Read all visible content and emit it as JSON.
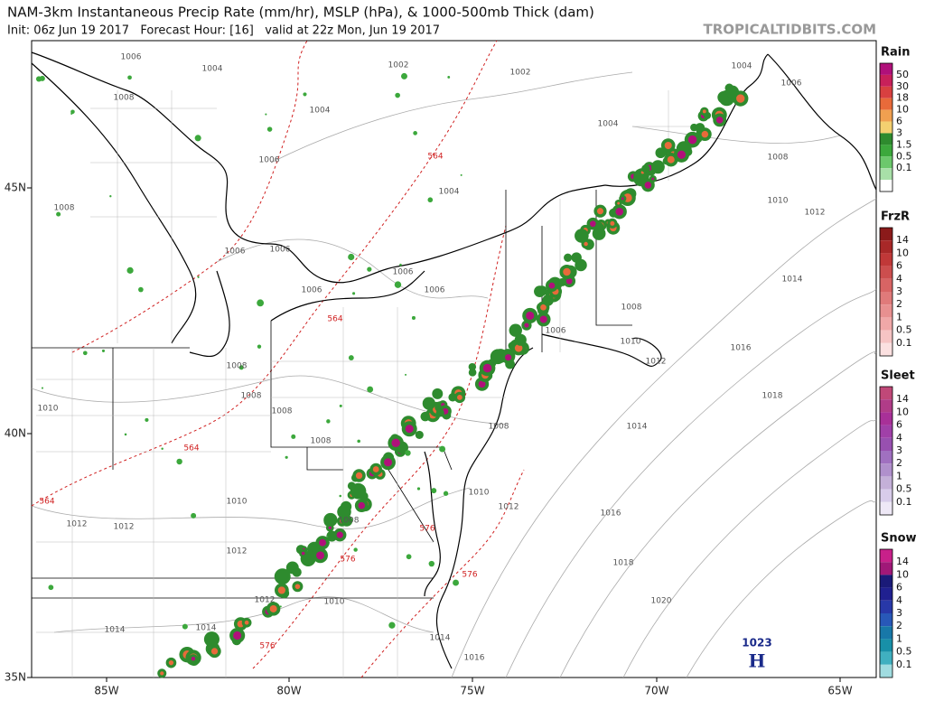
{
  "header": {
    "title": "NAM-3km Instantaneous Precip Rate (mm/hr), MSLP (hPa), & 1000-500mb Thick (dam)",
    "subtitle": "Init: 06z Jun 19 2017   Forecast Hour: [16]   valid at 22z Mon, Jun 19 2017",
    "watermark": "TROPICALTIDBITS.COM"
  },
  "axes": {
    "longitude": [
      "85W",
      "80W",
      "75W",
      "70W",
      "65W"
    ],
    "latitude": [
      "45N",
      "40N",
      "35N"
    ]
  },
  "legends": [
    {
      "title": "Rain",
      "levels": [
        "50",
        "30",
        "18",
        "10",
        "6",
        "3",
        "1.5",
        "0.5",
        "0.1"
      ],
      "colors": [
        "#b0107a",
        "#c8205a",
        "#d84040",
        "#e86a3a",
        "#f0a050",
        "#f4d070",
        "#2e8b2e",
        "#3ca83c",
        "#6cc86c",
        "#a8e0a8",
        "#ffffff"
      ]
    },
    {
      "title": "FrzR",
      "levels": [
        "14",
        "10",
        "6",
        "4",
        "3",
        "2",
        "1",
        "0.5",
        "0.1"
      ],
      "colors": [
        "#8b1a1a",
        "#a82828",
        "#c03838",
        "#cc4e4e",
        "#d86464",
        "#e07a7a",
        "#e89090",
        "#f0a8a8",
        "#f6c4c4",
        "#fbe0e0"
      ]
    },
    {
      "title": "Sleet",
      "levels": [
        "14",
        "10",
        "6",
        "4",
        "3",
        "2",
        "1",
        "0.5",
        "0.1"
      ],
      "colors": [
        "#c04878",
        "#b03c88",
        "#a83098",
        "#a040a8",
        "#9850b0",
        "#a070c0",
        "#b090cc",
        "#c4b0d8",
        "#d8ccea",
        "#eee8f6"
      ]
    },
    {
      "title": "Snow",
      "levels": [
        "14",
        "10",
        "6",
        "4",
        "3",
        "2",
        "1",
        "0.5",
        "0.1"
      ],
      "colors": [
        "#c8208a",
        "#a01878",
        "#1a1a78",
        "#202090",
        "#2838a8",
        "#2858b8",
        "#1878a8",
        "#1890a8",
        "#40b0c0",
        "#a0dce0"
      ]
    }
  ],
  "isobar_labels": [
    "1006",
    "1004",
    "1002",
    "1002",
    "1004",
    "1006",
    "1008",
    "1004",
    "1004",
    "1006",
    "1008",
    "1004",
    "1008",
    "1010",
    "1012",
    "1006",
    "1006",
    "1006",
    "1006",
    "1006",
    "1014",
    "1008",
    "1006",
    "1010",
    "1012",
    "1016",
    "1018",
    "1008",
    "1008",
    "1010",
    "1008",
    "1008",
    "1014",
    "1008",
    "1010",
    "1012",
    "1016",
    "1010",
    "1012",
    "1012",
    "1008",
    "1012",
    "1018",
    "1020",
    "1012",
    "1010",
    "1014",
    "1014",
    "1014",
    "1016"
  ],
  "thickness_labels": [
    "564",
    "564",
    "564",
    "564",
    "576",
    "576",
    "576",
    "576"
  ],
  "high": {
    "pressure": "1023",
    "label": "H"
  }
}
